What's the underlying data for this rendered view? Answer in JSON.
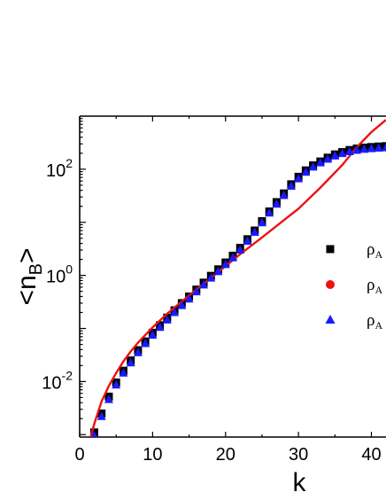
{
  "chart_data": {
    "type": "scatter",
    "xlabel": "k",
    "ylabel": "<n_B>",
    "ylabel_main": "<n",
    "ylabel_sub": "B",
    "ylabel_close": ">",
    "x_scale": "linear",
    "y_scale": "log",
    "xlim": [
      0,
      42
    ],
    "ylim": [
      0.0009,
      1000
    ],
    "x_ticks": [
      {
        "value": 0,
        "label": "0"
      },
      {
        "value": 10,
        "label": "10"
      },
      {
        "value": 20,
        "label": "20"
      },
      {
        "value": 30,
        "label": "30"
      },
      {
        "value": 40,
        "label": "40"
      }
    ],
    "y_ticks": [
      {
        "value": 0.01,
        "base": "10",
        "exp": "-2"
      },
      {
        "value": 1,
        "base": "10",
        "exp": "0"
      },
      {
        "value": 100,
        "base": "10",
        "exp": "2"
      }
    ],
    "grid": false,
    "legend_position": "right",
    "series": [
      {
        "name": "ρ_A",
        "legend_main": "ρ",
        "legend_sub": "A",
        "marker": "square",
        "color": "#000000",
        "x": [
          2,
          3,
          4,
          5,
          6,
          7,
          8,
          9,
          10,
          11,
          12,
          13,
          14,
          15,
          16,
          17,
          18,
          19,
          20,
          21,
          22,
          23,
          24,
          25,
          26,
          27,
          28,
          29,
          30,
          31,
          32,
          33,
          34,
          35,
          36,
          37,
          38,
          39,
          40,
          41,
          42
        ],
        "y": [
          0.0011,
          0.0025,
          0.0052,
          0.0096,
          0.016,
          0.025,
          0.039,
          0.057,
          0.083,
          0.115,
          0.16,
          0.22,
          0.3,
          0.4,
          0.54,
          0.73,
          0.98,
          1.3,
          1.75,
          2.35,
          3.3,
          4.8,
          7.0,
          10.5,
          16,
          24,
          35,
          52,
          72,
          95,
          118,
          140,
          165,
          190,
          210,
          230,
          245,
          255,
          262,
          268,
          272
        ]
      },
      {
        "name": "ρ_A",
        "legend_main": "ρ",
        "legend_sub": "A",
        "marker": "line",
        "color": "#ee1111",
        "x": [
          1.5,
          2,
          3,
          4,
          5,
          6,
          7,
          8,
          10,
          12,
          15,
          18,
          20,
          22,
          25,
          28,
          30,
          33,
          36,
          38,
          40,
          42
        ],
        "y": [
          0.0009,
          0.0016,
          0.0042,
          0.0083,
          0.0145,
          0.024,
          0.037,
          0.054,
          0.105,
          0.19,
          0.42,
          0.9,
          1.5,
          2.5,
          5.2,
          11,
          18,
          45,
          120,
          260,
          500,
          850
        ]
      },
      {
        "name": "ρ_A",
        "legend_main": "ρ",
        "legend_sub": "A",
        "marker": "triangle",
        "color": "#1a1aff",
        "x": [
          2,
          3,
          4,
          5,
          6,
          7,
          8,
          9,
          10,
          11,
          12,
          13,
          14,
          15,
          16,
          17,
          18,
          19,
          20,
          21,
          22,
          23,
          24,
          25,
          26,
          27,
          28,
          29,
          30,
          31,
          32,
          33,
          34,
          35,
          36,
          37,
          38,
          39,
          40,
          41,
          42
        ],
        "y": [
          0.00095,
          0.0022,
          0.0046,
          0.0086,
          0.0145,
          0.0225,
          0.035,
          0.052,
          0.075,
          0.105,
          0.145,
          0.2,
          0.27,
          0.36,
          0.49,
          0.66,
          0.89,
          1.18,
          1.6,
          2.15,
          3.0,
          4.4,
          6.5,
          9.8,
          15,
          22,
          32,
          48,
          66,
          88,
          110,
          132,
          155,
          178,
          198,
          215,
          228,
          238,
          245,
          250,
          254
        ]
      }
    ]
  }
}
